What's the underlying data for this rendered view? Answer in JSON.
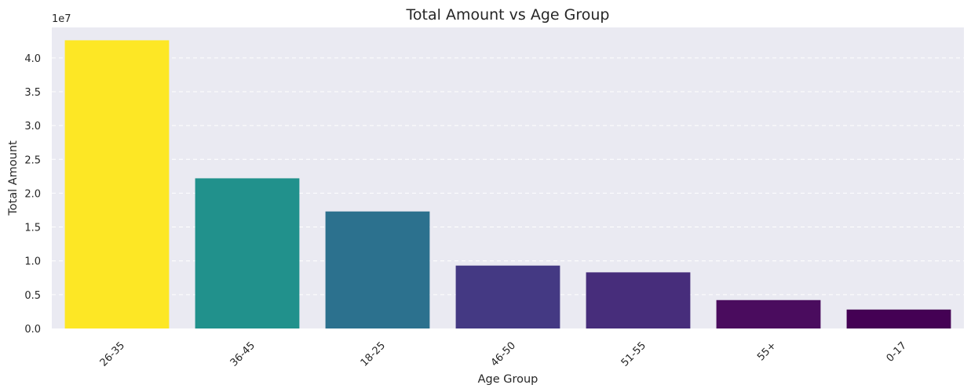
{
  "chart_data": {
    "type": "bar",
    "title": "Total Amount vs Age Group",
    "xlabel": "Age Group",
    "ylabel": "Total Amount",
    "y_scale_label": "1e7",
    "categories": [
      "26-35",
      "36-45",
      "18-25",
      "46-50",
      "51-55",
      "55+",
      "0-17"
    ],
    "values": [
      42600000,
      22200000,
      17300000,
      9300000,
      8300000,
      4200000,
      2800000
    ],
    "colors": [
      "#fde725",
      "#21918c",
      "#2c718e",
      "#443983",
      "#472d7b",
      "#4a0c5e",
      "#440154"
    ],
    "ylim": [
      0,
      44500000
    ],
    "yticks": [
      0,
      5000000,
      10000000,
      15000000,
      20000000,
      25000000,
      30000000,
      35000000,
      40000000
    ],
    "ytick_labels": [
      "0.0",
      "0.5",
      "1.0",
      "1.5",
      "2.0",
      "2.5",
      "3.0",
      "3.5",
      "4.0"
    ],
    "grid": "horizontal dashed",
    "background": "#eaeaf2",
    "x_tick_rotation": 45
  }
}
